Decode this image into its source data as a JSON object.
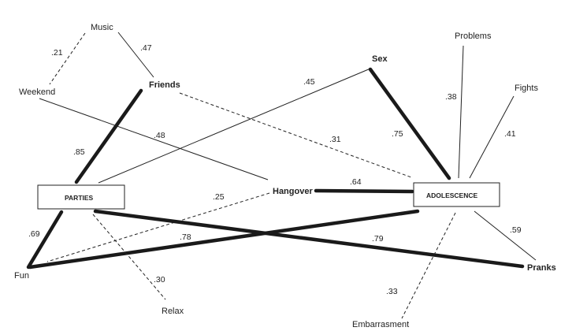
{
  "nodes": {
    "music": "Music",
    "weekend": "Weekend",
    "friends": "Friends",
    "sex": "Sex",
    "problems": "Problems",
    "fights": "Fights",
    "parties": "PARTIES",
    "hangover": "Hangover",
    "adolescence": "ADOLESCENCE",
    "fun": "Fun",
    "relax": "Relax",
    "pranks": "Pranks",
    "embarrasment": "Embarrasment"
  },
  "edges": [
    {
      "from": "music",
      "to": "weekend",
      "value": ".21",
      "style": "dashed"
    },
    {
      "from": "music",
      "to": "friends",
      "value": ".47",
      "style": "thin"
    },
    {
      "from": "friends",
      "to": "parties",
      "value": ".85",
      "style": "thick"
    },
    {
      "from": "weekend",
      "to": "hangover",
      "value": ".48",
      "style": "thin"
    },
    {
      "from": "parties",
      "to": "sex",
      "value": ".45",
      "style": "thin"
    },
    {
      "from": "friends",
      "to": "adolescence",
      "value": ".31",
      "style": "dashed"
    },
    {
      "from": "sex",
      "to": "adolescence",
      "value": ".75",
      "style": "thick"
    },
    {
      "from": "problems",
      "to": "adolescence",
      "value": ".38",
      "style": "thin"
    },
    {
      "from": "fights",
      "to": "adolescence",
      "value": ".41",
      "style": "thin"
    },
    {
      "from": "hangover",
      "to": "adolescence",
      "value": ".64",
      "style": "thick"
    },
    {
      "from": "hangover",
      "to": "fun",
      "value": ".25",
      "style": "dashed"
    },
    {
      "from": "parties",
      "to": "fun",
      "value": ".69",
      "style": "thick"
    },
    {
      "from": "fun",
      "to": "adolescence",
      "value": ".78",
      "style": "thick"
    },
    {
      "from": "parties",
      "to": "pranks",
      "value": ".79",
      "style": "thick"
    },
    {
      "from": "parties",
      "to": "relax",
      "value": ".30",
      "style": "dashed"
    },
    {
      "from": "adolescence",
      "to": "embarrasment",
      "value": ".33",
      "style": "dashed"
    },
    {
      "from": "adolescence",
      "to": "pranks",
      "value": ".59",
      "style": "thin"
    }
  ]
}
